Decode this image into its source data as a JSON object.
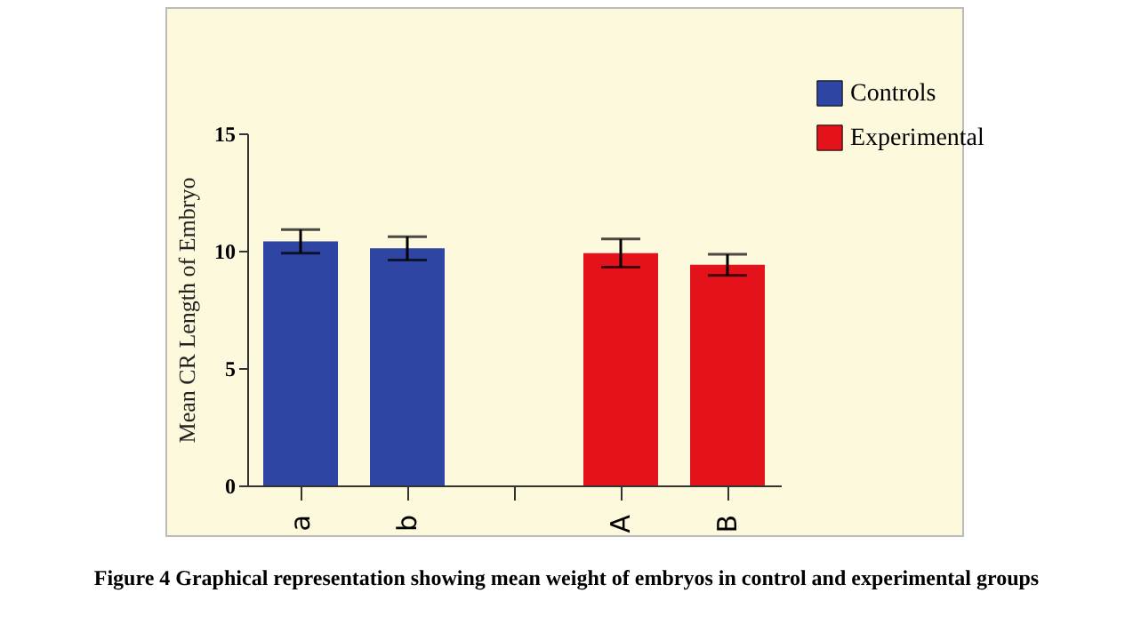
{
  "chart_data": {
    "type": "bar",
    "ylabel": "Mean CR Length of Embryo",
    "categories": [
      "a",
      "b",
      null,
      "A",
      "B"
    ],
    "series": [
      {
        "name": "Controls",
        "color": "#2e45a3",
        "values": [
          10.4,
          10.1,
          null,
          null,
          null
        ],
        "errors": [
          0.5,
          0.5,
          null,
          null,
          null
        ]
      },
      {
        "name": "Experimental",
        "color": "#e3121b",
        "values": [
          null,
          null,
          null,
          9.9,
          9.4
        ],
        "errors": [
          null,
          null,
          null,
          0.6,
          0.45
        ]
      }
    ],
    "ylim": [
      0,
      15
    ],
    "yticks": [
      0,
      5,
      10,
      15
    ],
    "grid": false,
    "legend": "top right",
    "annotations": [
      "Figure 4 Graphical representation showing mean weight of embryos in control and experimental groups"
    ]
  }
}
